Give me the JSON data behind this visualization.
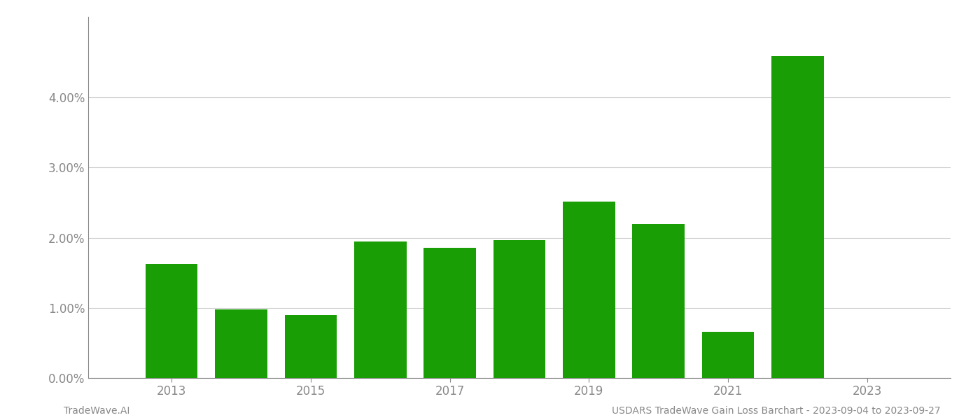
{
  "years": [
    2013,
    2014,
    2015,
    2016,
    2017,
    2018,
    2019,
    2020,
    2021,
    2022,
    2023
  ],
  "values": [
    0.01625,
    0.00975,
    0.00895,
    0.01945,
    0.01855,
    0.01965,
    0.02515,
    0.02195,
    0.00655,
    0.04595,
    0.0
  ],
  "bar_years": [
    2013,
    2014,
    2015,
    2016,
    2017,
    2018,
    2019,
    2020,
    2021,
    2022
  ],
  "bar_values": [
    0.01625,
    0.00975,
    0.00895,
    0.01945,
    0.01855,
    0.01965,
    0.02515,
    0.02195,
    0.00655,
    0.04595
  ],
  "bar_color": "#1a9e06",
  "ylim": [
    0,
    0.0515
  ],
  "yticks": [
    0.0,
    0.01,
    0.02,
    0.03,
    0.04
  ],
  "xtick_labels": [
    "2013",
    "2015",
    "2017",
    "2019",
    "2021",
    "2023"
  ],
  "xtick_positions": [
    2013,
    2015,
    2017,
    2019,
    2021,
    2023
  ],
  "xlim_left": 2011.8,
  "xlim_right": 2024.2,
  "footer_left": "TradeWave.AI",
  "footer_right": "USDARS TradeWave Gain Loss Barchart - 2023-09-04 to 2023-09-27",
  "background_color": "#ffffff",
  "grid_color": "#cccccc",
  "tick_color": "#888888",
  "bar_width": 0.75,
  "fig_width": 14.0,
  "fig_height": 6.0
}
